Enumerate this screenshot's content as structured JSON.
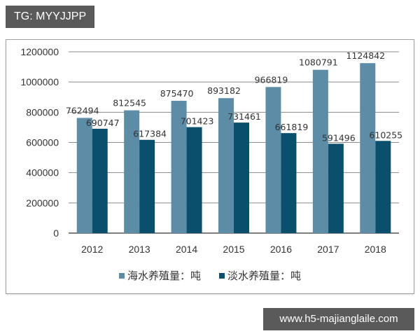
{
  "watermarks": {
    "top_left": "TG: MYYJJPP",
    "bottom_right": "www.h5-majianglaile.com"
  },
  "colors": {
    "series_1": "#5d8ca6",
    "series_2": "#0a4f6b",
    "grid": "#8a8a8a",
    "watermark_bg": "#5a5a5a"
  },
  "chart_data": {
    "type": "bar",
    "title": "",
    "xlabel": "",
    "ylabel": "",
    "categories": [
      "2012",
      "2013",
      "2014",
      "2015",
      "2016",
      "2017",
      "2018"
    ],
    "series": [
      {
        "name": "海水养殖量：吨",
        "values": [
          762494,
          812545,
          875470,
          893182,
          966819,
          1080791,
          1124842
        ]
      },
      {
        "name": "淡水养殖量：吨",
        "values": [
          690747,
          617384,
          701423,
          731461,
          661819,
          591496,
          610255
        ]
      }
    ],
    "ylim": [
      0,
      1200000
    ],
    "yticks": [
      "0",
      "200000",
      "400000",
      "600000",
      "800000",
      "1000000",
      "1200000"
    ],
    "grid": true,
    "data_labels": true,
    "legend_position": "bottom"
  }
}
